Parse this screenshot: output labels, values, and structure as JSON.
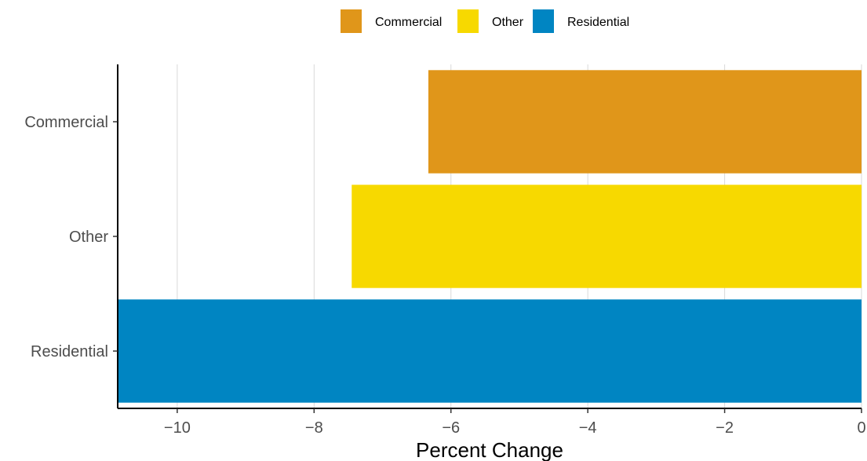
{
  "chart_data": {
    "type": "bar",
    "orientation": "horizontal",
    "categories": [
      "Commercial",
      "Other",
      "Residential"
    ],
    "values": [
      -6.33,
      -7.45,
      -10.87
    ],
    "colors": [
      "#E0961A",
      "#F7D900",
      "#0085C2"
    ],
    "xlabel": "Percent Change",
    "ylabel": "",
    "xlim": [
      -10.87,
      0
    ],
    "xticks": [
      -10,
      -8,
      -6,
      -4,
      -2,
      0
    ],
    "xtick_labels": [
      "−10",
      "−8",
      "−6",
      "−4",
      "−2",
      "0"
    ],
    "grid": "vertical major",
    "legend": {
      "position": "top",
      "entries": [
        "Commercial",
        "Other",
        "Residential"
      ]
    }
  }
}
